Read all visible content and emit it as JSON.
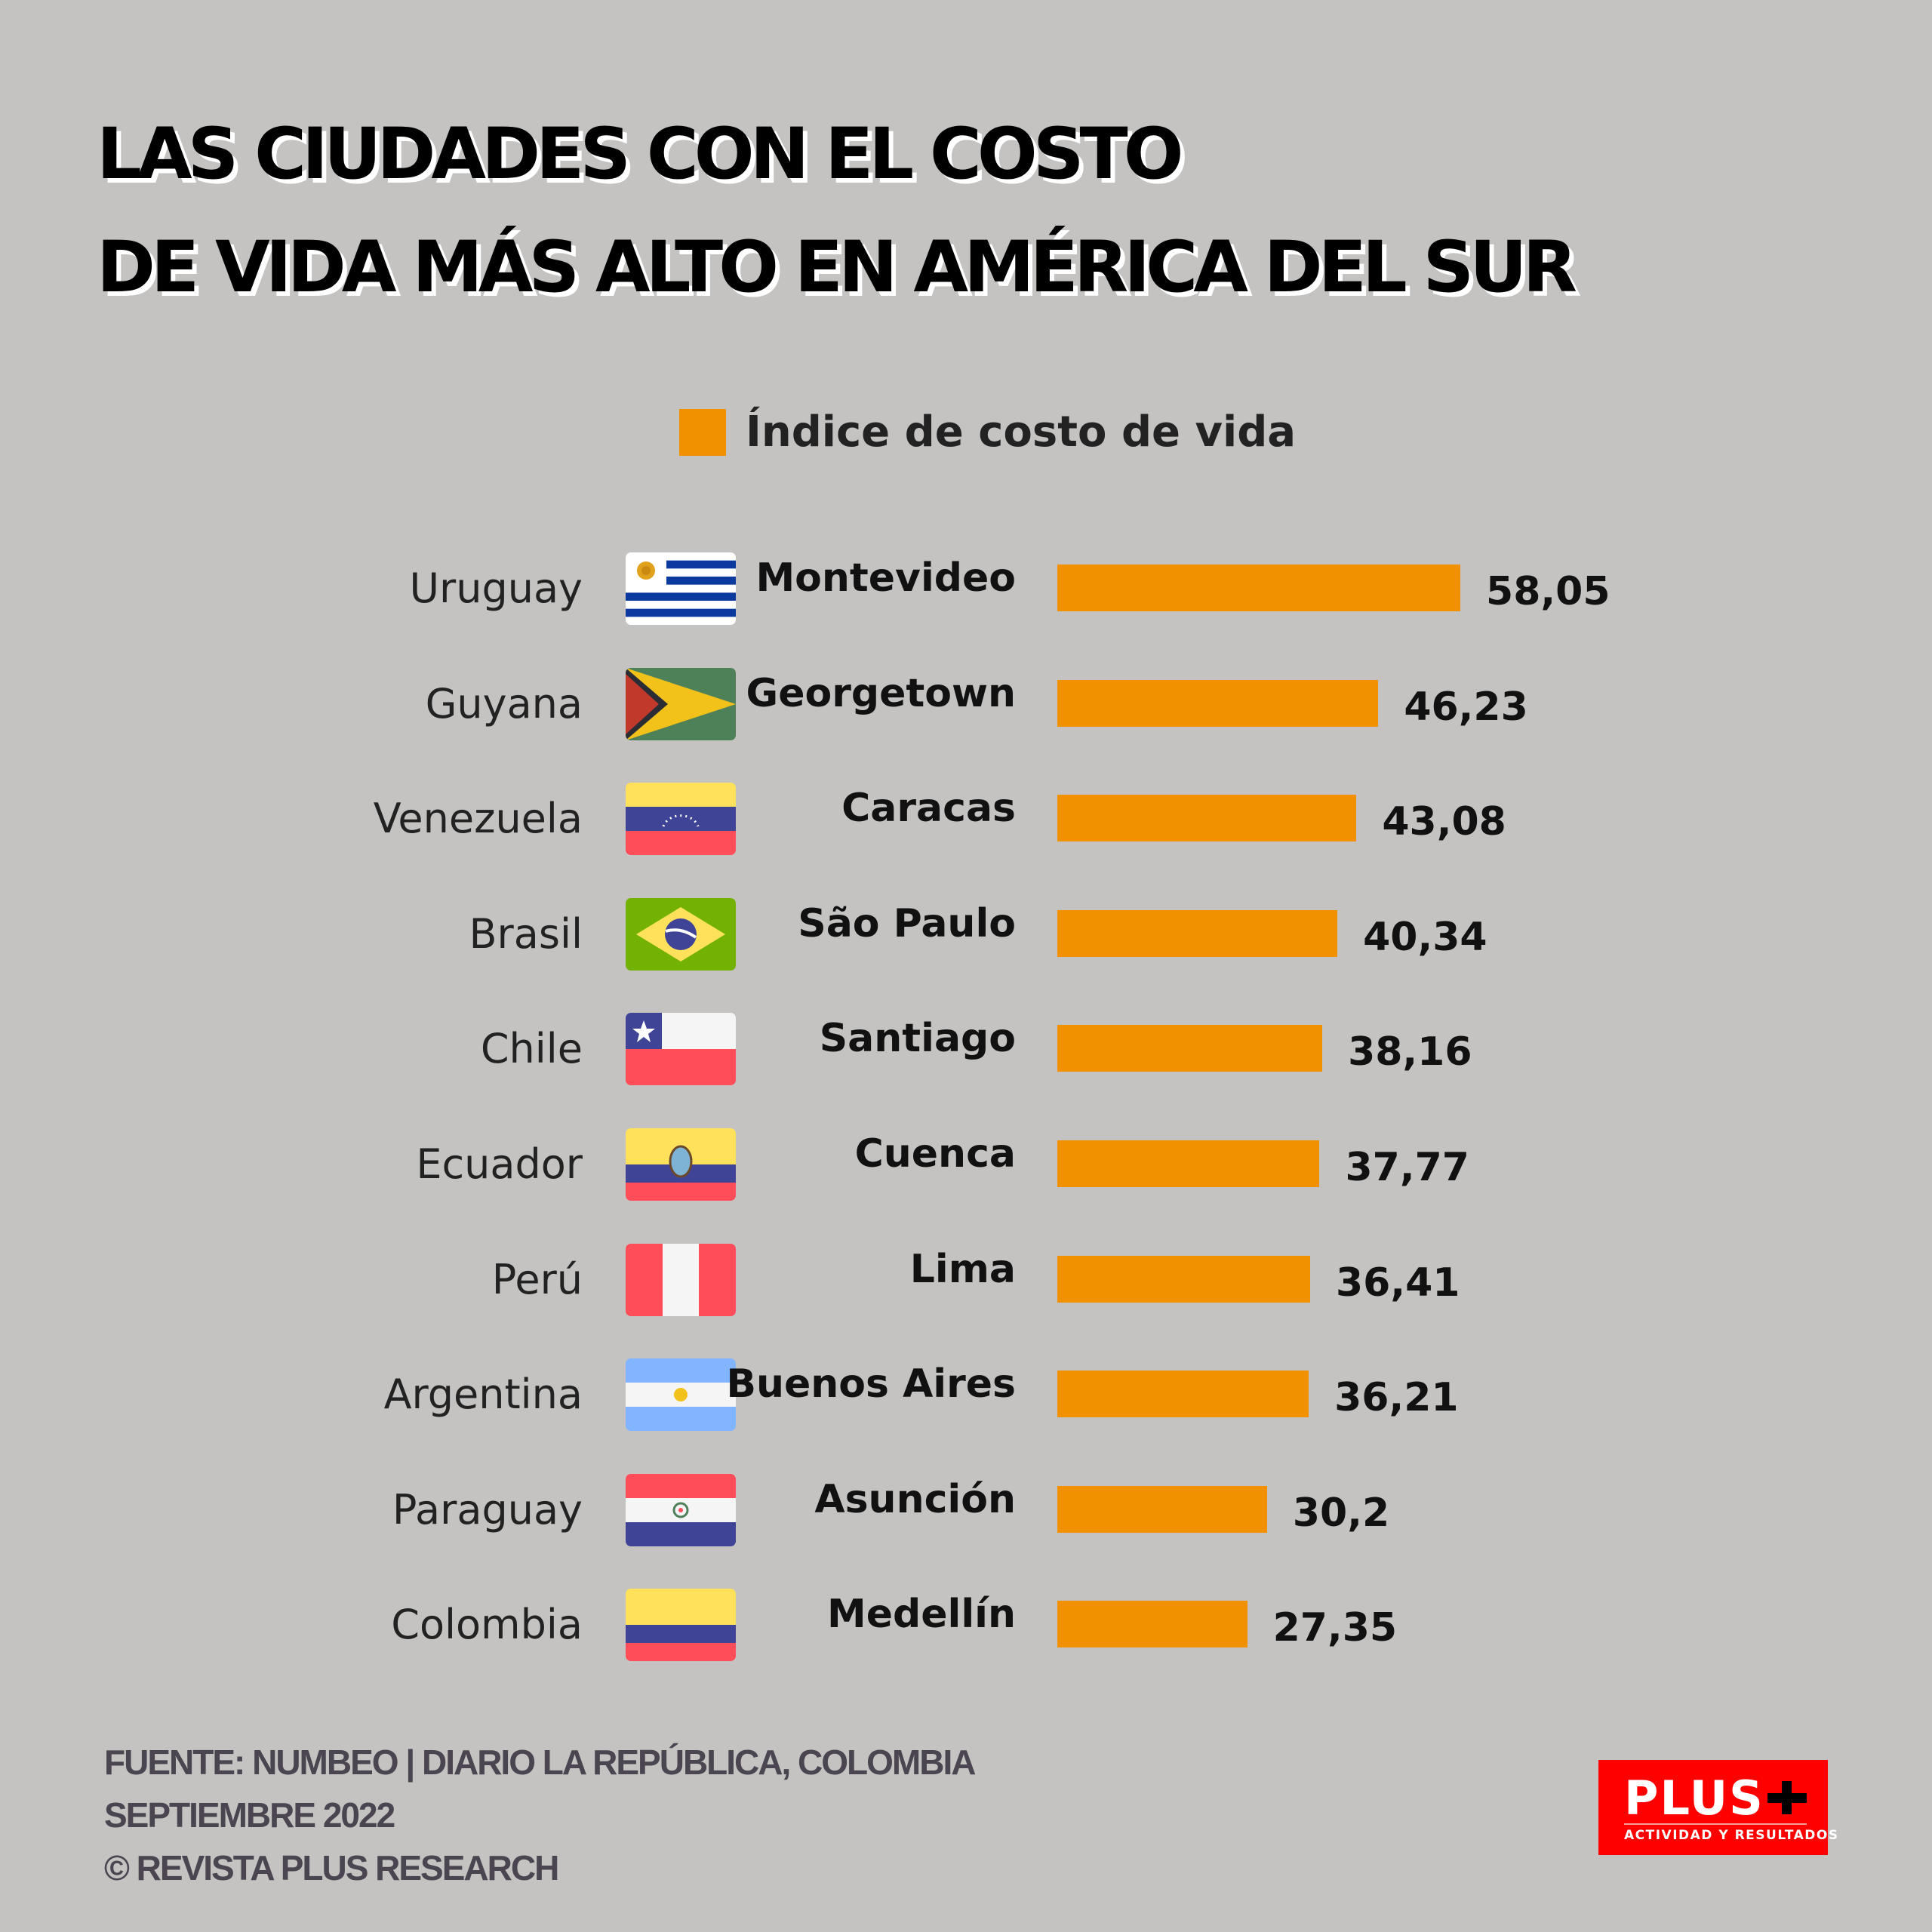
{
  "title": {
    "line1": "LAS CIUDADES CON EL COSTO",
    "line2": "DE VIDA MÁS ALTO EN AMÉRICA DEL SUR"
  },
  "chart_data": {
    "type": "bar",
    "orientation": "horizontal",
    "title": "LAS CIUDADES CON EL COSTO DE VIDA MÁS ALTO EN AMÉRICA DEL SUR",
    "legend": {
      "label": "Índice de costo de vida",
      "position": "top"
    },
    "series": [
      {
        "name": "Índice de costo de vida",
        "color": "#f29100"
      }
    ],
    "grid": false,
    "rows": [
      {
        "country": "Uruguay",
        "city": "Montevideo",
        "value": 58.05,
        "label": "58,05",
        "flag": "uruguay"
      },
      {
        "country": "Guyana",
        "city": "Georgetown",
        "value": 46.23,
        "label": "46,23",
        "flag": "guyana"
      },
      {
        "country": "Venezuela",
        "city": "Caracas",
        "value": 43.08,
        "label": "43,08",
        "flag": "venezuela"
      },
      {
        "country": "Brasil",
        "city": "São Paulo",
        "value": 40.34,
        "label": "40,34",
        "flag": "brazil"
      },
      {
        "country": "Chile",
        "city": "Santiago",
        "value": 38.16,
        "label": "38,16",
        "flag": "chile"
      },
      {
        "country": "Ecuador",
        "city": "Cuenca",
        "value": 37.77,
        "label": "37,77",
        "flag": "ecuador"
      },
      {
        "country": "Perú",
        "city": "Lima",
        "value": 36.41,
        "label": "36,41",
        "flag": "peru"
      },
      {
        "country": "Argentina",
        "city": "Buenos Aires",
        "value": 36.21,
        "label": "36,21",
        "flag": "argentina"
      },
      {
        "country": "Paraguay",
        "city": "Asunción",
        "value": 30.2,
        "label": "30,2",
        "flag": "paraguay"
      },
      {
        "country": "Colombia",
        "city": "Medellín",
        "value": 27.35,
        "label": "27,35",
        "flag": "colombia"
      }
    ]
  },
  "footer": {
    "line1": "FUENTE: NUMBEO  |  DIARIO LA REPÚBLICA, COLOMBIA",
    "line2": "SEPTIEMBRE 2022",
    "line3": "© REVISTA PLUS RESEARCH"
  },
  "logo": {
    "name": "PLUS",
    "tagline": "ACTIVIDAD Y RESULTADOS"
  }
}
